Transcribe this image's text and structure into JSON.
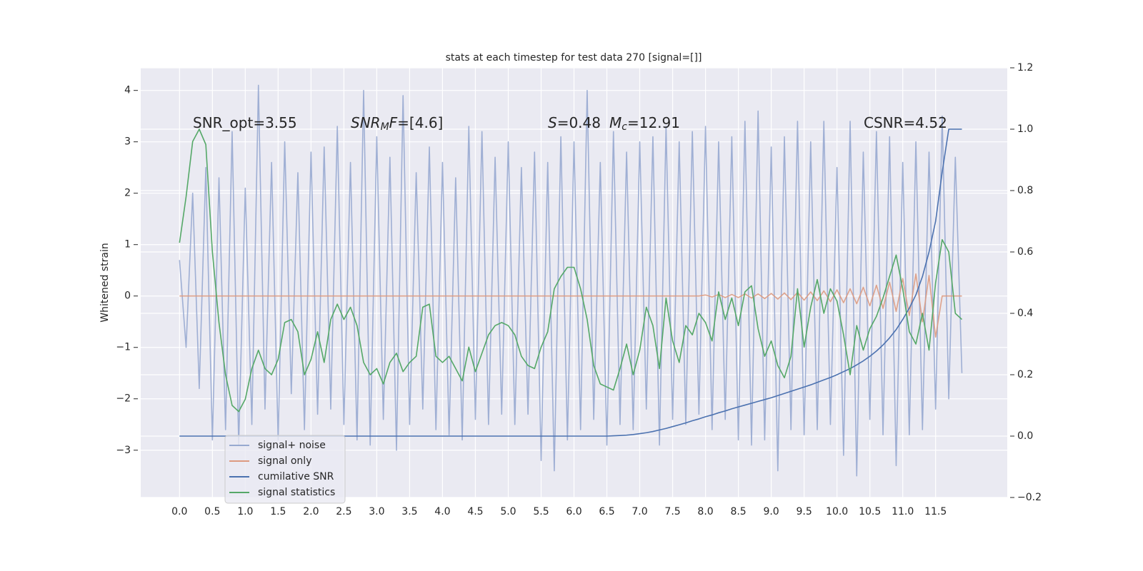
{
  "chart_data": {
    "type": "line",
    "title": "stats at each timestep for test data 270 [signal=[]]",
    "ylabel": "Whitened strain",
    "annotations": [
      [
        {
          "text": "SNR_opt=3.55"
        }
      ],
      [
        {
          "text": "SNR",
          "italic": true
        },
        {
          "text": "M",
          "italic": true,
          "sub": true
        },
        {
          "text": "F",
          "italic": true
        },
        {
          "text": "=[4.6]"
        }
      ],
      [
        {
          "text": "S",
          "italic": true
        },
        {
          "text": "=0.48"
        },
        {
          "text": "M",
          "italic": true
        },
        {
          "text": "c",
          "italic": true,
          "sub": true
        },
        {
          "text": "=12.91"
        }
      ],
      [
        {
          "text": "CSNR=4.52"
        }
      ]
    ],
    "grid": true,
    "legend": "lower left",
    "xlim": [
      -0.59,
      12.59
    ],
    "ylim": [
      -3.92,
      4.44
    ],
    "y2lim": [
      -0.2,
      1.2
    ],
    "xticks": [
      {
        "value": 0,
        "label": "0.0"
      },
      0.5,
      {
        "value": 1,
        "label": "1.0"
      },
      1.5,
      {
        "value": 2,
        "label": "2.0"
      },
      2.5,
      {
        "value": 3,
        "label": "3.0"
      },
      3.5,
      {
        "value": 4,
        "label": "4.0"
      },
      4.5,
      {
        "value": 5,
        "label": "5.0"
      },
      5.5,
      {
        "value": 6,
        "label": "6.0"
      },
      6.5,
      {
        "value": 7,
        "label": "7.0"
      },
      7.5,
      {
        "value": 8,
        "label": "8.0"
      },
      8.5,
      {
        "value": 9,
        "label": "9.0"
      },
      9.5,
      {
        "value": 10,
        "label": "10.0"
      },
      10.5,
      {
        "value": 11,
        "label": "11.0"
      },
      11.5
    ],
    "yticks": [
      {
        "value": -3,
        "label": "−3"
      },
      {
        "value": -2,
        "label": "−2"
      },
      {
        "value": -1,
        "label": "−1"
      },
      0,
      1,
      2,
      3,
      4
    ],
    "y2ticks": [
      {
        "value": -0.2,
        "label": "−0.2"
      },
      {
        "value": 0,
        "label": "0.0"
      },
      0.2,
      0.4,
      0.6,
      0.8,
      {
        "value": 1,
        "label": "1.0"
      },
      1.2
    ],
    "x": [
      0,
      0.1,
      0.2,
      0.3,
      0.4,
      0.5,
      0.6,
      0.7,
      0.8,
      0.9,
      1,
      1.1,
      1.2,
      1.3,
      1.4,
      1.5,
      1.6,
      1.7,
      1.8,
      1.9,
      2,
      2.1,
      2.2,
      2.3,
      2.4,
      2.5,
      2.6,
      2.7,
      2.8,
      2.9,
      3,
      3.1,
      3.2,
      3.3,
      3.4,
      3.5,
      3.6,
      3.7,
      3.8,
      3.9,
      4,
      4.1,
      4.2,
      4.3,
      4.4,
      4.5,
      4.6,
      4.7,
      4.8,
      4.9,
      5,
      5.1,
      5.2,
      5.3,
      5.4,
      5.5,
      5.6,
      5.7,
      5.8,
      5.9,
      6,
      6.1,
      6.2,
      6.3,
      6.4,
      6.5,
      6.6,
      6.7,
      6.8,
      6.9,
      7,
      7.1,
      7.2,
      7.3,
      7.4,
      7.5,
      7.6,
      7.7,
      7.8,
      7.9,
      8,
      8.1,
      8.2,
      8.3,
      8.4,
      8.5,
      8.6,
      8.7,
      8.8,
      8.9,
      9,
      9.1,
      9.2,
      9.3,
      9.4,
      9.5,
      9.6,
      9.7,
      9.8,
      9.9,
      10,
      10.1,
      10.2,
      10.3,
      10.4,
      10.5,
      10.6,
      10.7,
      10.8,
      10.9,
      11,
      11.1,
      11.2,
      11.3,
      11.4,
      11.5,
      11.6,
      11.7,
      11.8,
      11.9
    ],
    "series": [
      {
        "name": "signal+ noise",
        "color": "#97a9d0",
        "values": [
          0.7,
          -1.0,
          2.0,
          -1.8,
          2.5,
          -2.8,
          2.3,
          -2.6,
          3.2,
          -2.9,
          2.1,
          -2.5,
          4.1,
          -2.2,
          2.6,
          -2.8,
          3.0,
          -1.9,
          2.4,
          -2.6,
          2.8,
          -2.3,
          2.9,
          -2.2,
          3.3,
          -2.5,
          2.6,
          -2.8,
          4.0,
          -2.9,
          3.1,
          -2.4,
          2.7,
          -3.0,
          3.9,
          -2.5,
          2.4,
          -2.2,
          2.9,
          -2.6,
          2.6,
          -2.7,
          2.3,
          -2.8,
          3.3,
          -2.4,
          3.2,
          -2.5,
          2.7,
          -2.3,
          3.0,
          -2.5,
          2.5,
          -2.3,
          2.8,
          -3.2,
          2.6,
          -3.4,
          3.1,
          -2.8,
          3.0,
          -2.6,
          4.0,
          -2.4,
          2.6,
          -2.9,
          3.2,
          -2.5,
          2.8,
          -2.6,
          3.0,
          -2.2,
          3.1,
          -2.9,
          3.3,
          -2.4,
          3.0,
          -2.5,
          3.2,
          -2.3,
          3.3,
          -2.6,
          3.0,
          -2.4,
          3.1,
          -2.8,
          3.4,
          -2.9,
          3.6,
          -2.8,
          2.9,
          -3.4,
          3.1,
          -2.6,
          3.4,
          -2.7,
          3.0,
          -2.6,
          3.4,
          -2.5,
          2.5,
          -3.1,
          3.4,
          -3.5,
          2.8,
          -2.4,
          3.2,
          -2.7,
          3.1,
          -3.3,
          2.6,
          -2.7,
          3.0,
          -2.6,
          2.8,
          -2.2,
          3.5,
          -2.0,
          2.7,
          -1.5
        ]
      },
      {
        "name": "signal only",
        "color": "#dd9a80",
        "values": [
          0,
          0,
          0,
          0,
          0,
          0,
          0,
          0,
          0,
          0,
          0,
          0,
          0,
          0,
          0,
          0,
          0,
          0,
          0,
          0,
          0,
          0,
          0,
          0,
          0,
          0,
          0,
          0,
          0,
          0,
          0,
          0,
          0,
          0,
          0,
          0,
          0,
          0,
          0,
          0,
          0,
          0,
          0,
          0,
          0,
          0,
          0,
          0,
          0,
          0,
          0,
          0,
          0,
          0,
          0,
          0,
          0,
          0,
          0,
          0,
          0,
          0,
          0,
          0,
          0,
          0,
          0,
          0,
          0,
          0,
          0,
          0,
          0,
          0,
          0,
          0,
          0,
          0,
          0,
          0,
          0.02,
          -0.02,
          0.03,
          -0.03,
          0.03,
          -0.03,
          0.04,
          -0.04,
          0.04,
          -0.05,
          0.05,
          -0.06,
          0.06,
          -0.07,
          0.07,
          -0.08,
          0.08,
          -0.09,
          0.1,
          -0.11,
          0.12,
          -0.13,
          0.14,
          -0.15,
          0.17,
          -0.19,
          0.21,
          -0.24,
          0.27,
          -0.3,
          0.34,
          -0.38,
          0.43,
          -0.5,
          0.4,
          -0.8,
          0,
          0,
          0,
          0
        ]
      },
      {
        "name": "cumilative SNR",
        "color": "#4c72b0",
        "axis": "y2",
        "values": [
          0,
          0,
          0,
          0,
          0,
          0,
          0,
          0,
          0,
          0,
          0,
          0,
          0,
          0,
          0,
          0,
          0,
          0,
          0,
          0,
          0,
          0,
          0,
          0,
          0,
          0,
          0,
          0,
          0,
          0,
          0,
          0,
          0,
          0,
          0,
          0,
          0,
          0,
          0,
          0,
          0,
          0,
          0,
          0,
          0,
          0,
          0,
          0,
          0,
          0,
          0,
          0,
          0,
          0,
          0,
          0,
          0,
          0,
          0,
          0,
          0,
          0,
          0,
          0,
          0,
          0,
          0.001,
          0.002,
          0.003,
          0.005,
          0.008,
          0.011,
          0.015,
          0.02,
          0.025,
          0.031,
          0.037,
          0.043,
          0.05,
          0.056,
          0.063,
          0.069,
          0.076,
          0.082,
          0.089,
          0.095,
          0.101,
          0.107,
          0.113,
          0.119,
          0.125,
          0.132,
          0.139,
          0.146,
          0.153,
          0.16,
          0.167,
          0.175,
          0.183,
          0.191,
          0.2,
          0.21,
          0.22,
          0.232,
          0.245,
          0.26,
          0.277,
          0.297,
          0.32,
          0.347,
          0.38,
          0.417,
          0.46,
          0.52,
          0.6,
          0.7,
          0.86,
          1.0,
          1.0,
          1.0
        ]
      },
      {
        "name": "signal statistics",
        "color": "#55a868",
        "axis": "y2",
        "values": [
          0.63,
          0.78,
          0.96,
          1.0,
          0.95,
          0.6,
          0.37,
          0.2,
          0.1,
          0.08,
          0.12,
          0.22,
          0.28,
          0.22,
          0.2,
          0.25,
          0.37,
          0.38,
          0.34,
          0.2,
          0.25,
          0.34,
          0.24,
          0.38,
          0.43,
          0.38,
          0.42,
          0.36,
          0.24,
          0.2,
          0.22,
          0.17,
          0.24,
          0.27,
          0.21,
          0.24,
          0.26,
          0.42,
          0.43,
          0.26,
          0.24,
          0.26,
          0.22,
          0.18,
          0.29,
          0.21,
          0.27,
          0.33,
          0.36,
          0.37,
          0.36,
          0.33,
          0.26,
          0.23,
          0.22,
          0.29,
          0.34,
          0.48,
          0.52,
          0.55,
          0.55,
          0.48,
          0.38,
          0.23,
          0.17,
          0.16,
          0.15,
          0.22,
          0.3,
          0.2,
          0.28,
          0.42,
          0.36,
          0.22,
          0.45,
          0.31,
          0.24,
          0.36,
          0.33,
          0.4,
          0.37,
          0.31,
          0.47,
          0.38,
          0.45,
          0.36,
          0.47,
          0.49,
          0.35,
          0.26,
          0.31,
          0.23,
          0.19,
          0.26,
          0.48,
          0.29,
          0.42,
          0.51,
          0.4,
          0.48,
          0.44,
          0.33,
          0.2,
          0.36,
          0.28,
          0.35,
          0.39,
          0.45,
          0.52,
          0.59,
          0.48,
          0.34,
          0.3,
          0.4,
          0.28,
          0.5,
          0.64,
          0.6,
          0.4,
          0.38
        ]
      }
    ]
  }
}
